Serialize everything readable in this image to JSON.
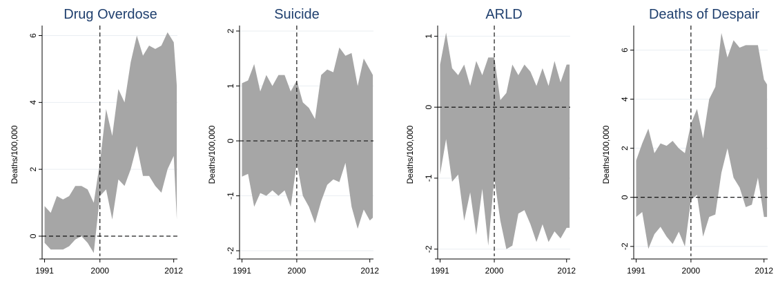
{
  "chart_data": [
    {
      "type": "area",
      "title": "Drug Overdose",
      "xlabel": "",
      "ylabel": "Deaths/100,000",
      "xlim": [
        1990.6,
        2012.6
      ],
      "ylim": [
        -0.6,
        6.3
      ],
      "xticks": [
        1991,
        2000,
        2012
      ],
      "yticks": [
        0,
        2,
        4,
        6
      ],
      "vline": 2000,
      "hline": 0,
      "grid": true,
      "x": [
        1991,
        1992,
        1993,
        1994,
        1995,
        1996,
        1997,
        1998,
        1999,
        2000,
        2001,
        2002,
        2003,
        2004,
        2005,
        2006,
        2007,
        2008,
        2009,
        2010,
        2011,
        2012,
        2012.5
      ],
      "upper": [
        0.9,
        0.7,
        1.2,
        1.1,
        1.2,
        1.5,
        1.5,
        1.4,
        1.0,
        2.2,
        3.8,
        3.0,
        4.4,
        4.0,
        5.2,
        6.0,
        5.4,
        5.7,
        5.6,
        5.7,
        6.1,
        5.8,
        4.5
      ],
      "lower": [
        -0.2,
        -0.4,
        -0.4,
        -0.4,
        -0.3,
        -0.1,
        0.0,
        -0.2,
        -0.5,
        1.2,
        1.4,
        0.5,
        1.7,
        1.5,
        2.0,
        2.7,
        1.8,
        1.8,
        1.5,
        1.3,
        2.0,
        2.4,
        0.5
      ]
    },
    {
      "type": "area",
      "title": "Suicide",
      "xlabel": "",
      "ylabel": "Deaths/100,000",
      "xlim": [
        1990.6,
        2012.6
      ],
      "ylim": [
        -2.1,
        2.1
      ],
      "xticks": [
        1991,
        2000,
        2012
      ],
      "yticks": [
        -2,
        -1,
        0,
        1,
        2
      ],
      "vline": 2000,
      "hline": 0,
      "grid": true,
      "x": [
        1991,
        1992,
        1993,
        1994,
        1995,
        1996,
        1997,
        1998,
        1999,
        2000,
        2001,
        2002,
        2003,
        2004,
        2005,
        2006,
        2007,
        2008,
        2009,
        2010,
        2011,
        2012,
        2012.5
      ],
      "upper": [
        1.05,
        1.1,
        1.4,
        0.9,
        1.2,
        1.0,
        1.2,
        1.2,
        0.9,
        1.1,
        0.7,
        0.6,
        0.4,
        1.2,
        1.3,
        1.25,
        1.7,
        1.55,
        1.6,
        1.0,
        1.5,
        1.3,
        1.2
      ],
      "lower": [
        -0.65,
        -0.6,
        -1.2,
        -0.95,
        -1.0,
        -0.9,
        -1.0,
        -0.9,
        -1.2,
        -0.4,
        -1.0,
        -1.2,
        -1.5,
        -1.1,
        -0.8,
        -0.7,
        -0.75,
        -0.4,
        -1.2,
        -1.6,
        -1.25,
        -1.45,
        -1.4
      ]
    },
    {
      "type": "area",
      "title": "ARLD",
      "xlabel": "",
      "ylabel": "Deaths/100,000",
      "xlim": [
        1990.6,
        2012.6
      ],
      "ylim": [
        -2.1,
        1.15
      ],
      "xticks": [
        1991,
        2000,
        2012
      ],
      "yticks": [
        -2,
        -1,
        0,
        1
      ],
      "vline": 2000,
      "hline": 0,
      "grid": true,
      "x": [
        1991,
        1992,
        1993,
        1994,
        1995,
        1996,
        1997,
        1998,
        1999,
        2000,
        2001,
        2002,
        2003,
        2004,
        2005,
        2006,
        2007,
        2008,
        2009,
        2010,
        2011,
        2012,
        2012.5
      ],
      "upper": [
        0.6,
        1.05,
        0.55,
        0.45,
        0.6,
        0.3,
        0.65,
        0.45,
        0.7,
        0.7,
        0.1,
        0.2,
        0.6,
        0.45,
        0.6,
        0.5,
        0.3,
        0.55,
        0.3,
        0.65,
        0.35,
        0.6,
        0.6
      ],
      "lower": [
        -0.95,
        -0.45,
        -1.05,
        -0.95,
        -1.6,
        -1.2,
        -1.8,
        -1.15,
        -1.95,
        -1.0,
        -1.6,
        -2.0,
        -1.95,
        -1.5,
        -1.45,
        -1.65,
        -1.9,
        -1.65,
        -1.9,
        -1.75,
        -1.85,
        -1.7,
        -1.7
      ]
    },
    {
      "type": "area",
      "title": "Deaths of Despair",
      "xlabel": "",
      "ylabel": "Deaths/100,000",
      "xlim": [
        1990.6,
        2012.6
      ],
      "ylim": [
        -2.4,
        7.0
      ],
      "xticks": [
        1991,
        2000,
        2012
      ],
      "yticks": [
        -2,
        0,
        2,
        4,
        6
      ],
      "vline": 2000,
      "hline": 0,
      "grid": true,
      "x": [
        1991,
        1992,
        1993,
        1994,
        1995,
        1996,
        1997,
        1998,
        1999,
        2000,
        2001,
        2002,
        2003,
        2004,
        2005,
        2006,
        2007,
        2008,
        2009,
        2010,
        2011,
        2012,
        2012.5
      ],
      "upper": [
        1.5,
        2.2,
        2.8,
        1.8,
        2.2,
        2.1,
        2.3,
        2.0,
        1.8,
        3.0,
        3.6,
        2.4,
        4.0,
        4.5,
        6.7,
        5.7,
        6.4,
        6.1,
        6.2,
        6.2,
        6.2,
        4.8,
        4.6
      ],
      "lower": [
        -0.8,
        -0.6,
        -2.1,
        -1.5,
        -1.2,
        -1.6,
        -1.9,
        -1.4,
        -2.0,
        -0.1,
        0.1,
        -1.6,
        -0.8,
        -0.7,
        1.0,
        2.0,
        0.8,
        0.4,
        -0.4,
        -0.3,
        0.8,
        -0.8,
        -0.8
      ]
    }
  ]
}
